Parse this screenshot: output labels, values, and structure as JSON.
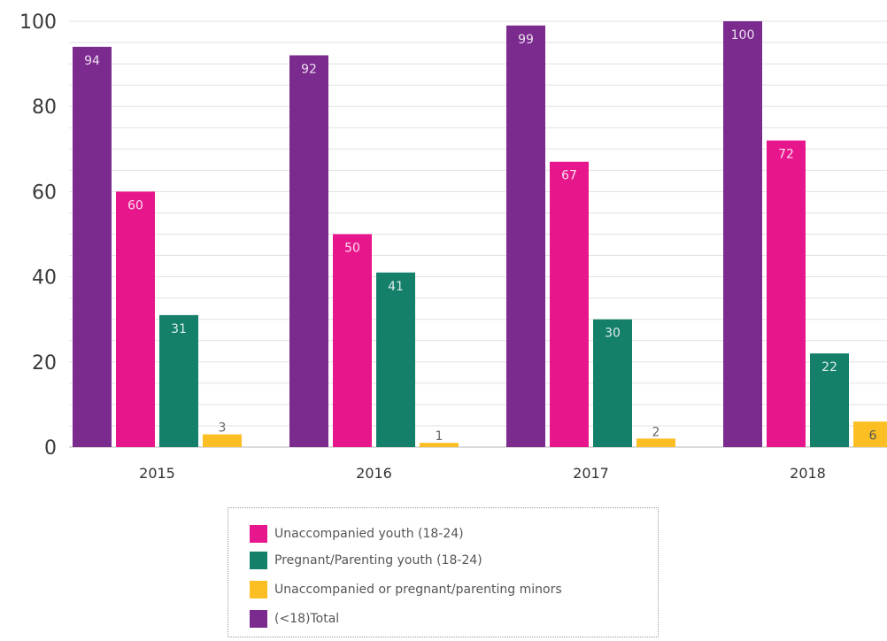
{
  "chart_data": {
    "type": "bar",
    "categories": [
      "2015",
      "2016",
      "2017",
      "2018"
    ],
    "series": [
      {
        "name": "(<18)Total",
        "color": "#7b2a8e",
        "values": [
          94,
          92,
          99,
          100
        ]
      },
      {
        "name": "Unaccompanied youth (18-24)",
        "color": "#e8168c",
        "values": [
          60,
          50,
          67,
          72
        ]
      },
      {
        "name": "Pregnant/Parenting youth (18-24)",
        "color": "#14806a",
        "values": [
          31,
          41,
          30,
          22
        ]
      },
      {
        "name": "Unaccompanied or pregnant/parenting minors",
        "color": "#fbbf24",
        "values": [
          3,
          1,
          2,
          6
        ]
      }
    ],
    "yticks": [
      0,
      20,
      40,
      60,
      80,
      100
    ],
    "ylim": [
      0,
      100
    ],
    "grid": true,
    "legend_position": "bottom",
    "legend_order": [
      1,
      2,
      3,
      0
    ],
    "title": "",
    "xlabel": "",
    "ylabel": ""
  }
}
